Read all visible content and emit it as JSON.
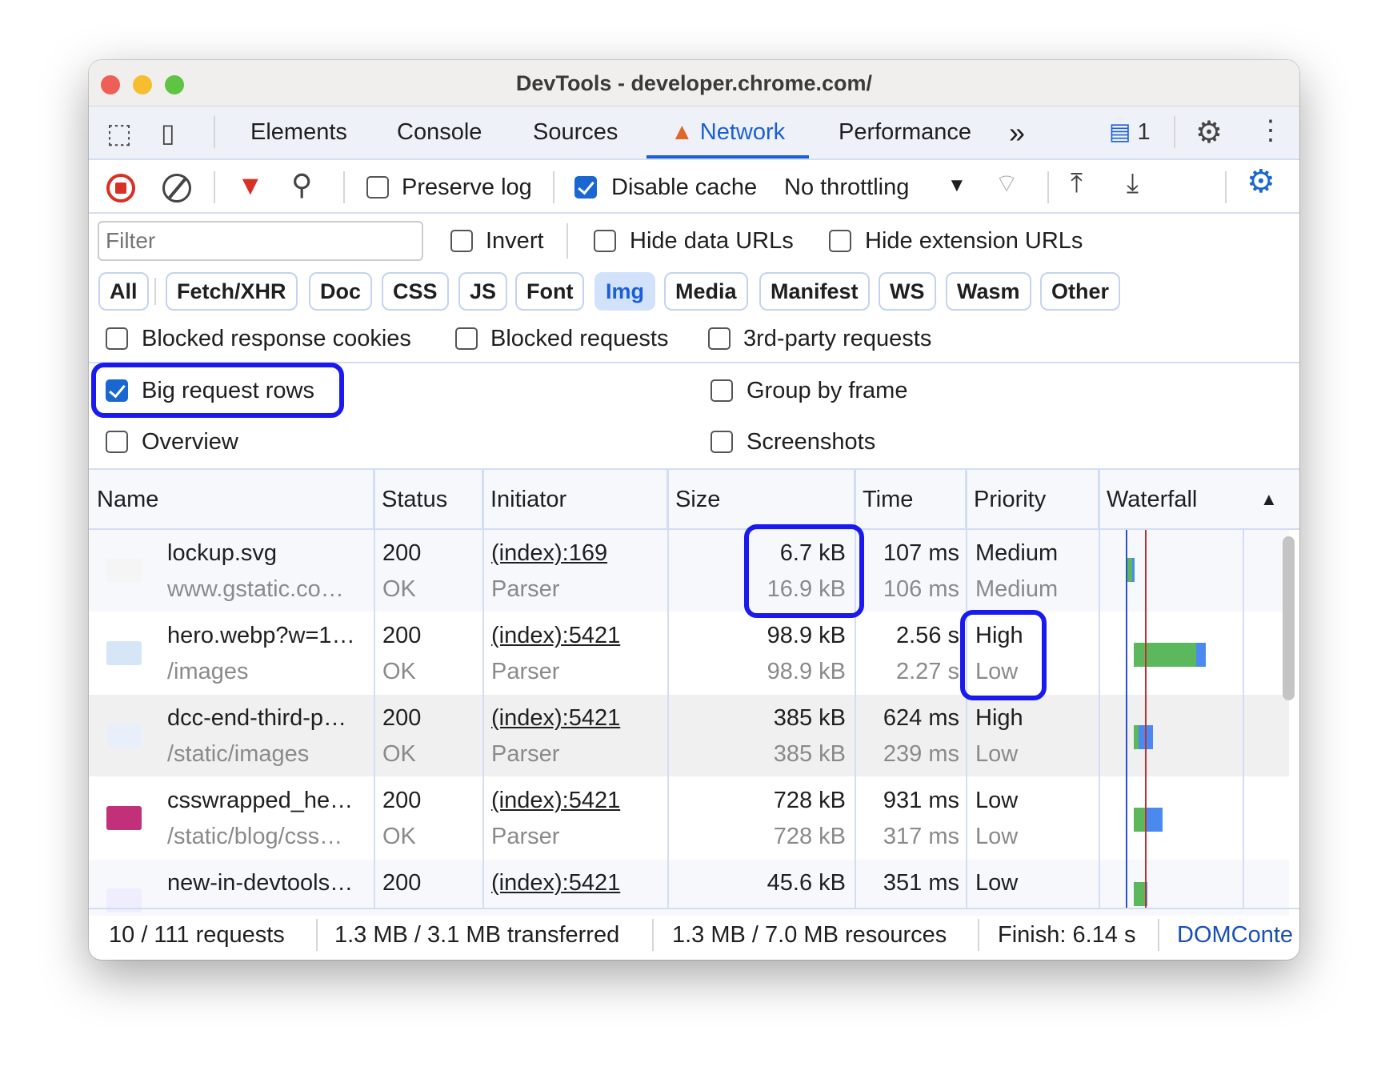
{
  "window": {
    "title": "DevTools - developer.chrome.com/"
  },
  "tabs": [
    {
      "label": "Elements"
    },
    {
      "label": "Console"
    },
    {
      "label": "Sources"
    },
    {
      "label": "Network",
      "active": true,
      "icon": "warning-icon"
    },
    {
      "label": "Performance"
    }
  ],
  "tabbar": {
    "more": "»",
    "issues_count": "1"
  },
  "toolbar": {
    "preserve_log": "Preserve log",
    "preserve_log_checked": false,
    "disable_cache": "Disable cache",
    "disable_cache_checked": true,
    "throttling": "No throttling"
  },
  "filter": {
    "placeholder": "Filter",
    "invert": "Invert",
    "hide_data_urls": "Hide data URLs",
    "hide_extension_urls": "Hide extension URLs"
  },
  "types": [
    "All",
    "Fetch/XHR",
    "Doc",
    "CSS",
    "JS",
    "Font",
    "Img",
    "Media",
    "Manifest",
    "WS",
    "Wasm",
    "Other"
  ],
  "selected_type": "Img",
  "options": {
    "blocked_cookies": "Blocked response cookies",
    "blocked_requests": "Blocked requests",
    "third_party": "3rd-party requests",
    "big_rows": "Big request rows",
    "big_rows_checked": true,
    "group_by_frame": "Group by frame",
    "overview": "Overview",
    "screenshots": "Screenshots"
  },
  "columns": [
    "Name",
    "Status",
    "Initiator",
    "Size",
    "Time",
    "Priority",
    "Waterfall"
  ],
  "rows": [
    {
      "name": "lockup.svg",
      "path": "www.gstatic.co…",
      "status": "200",
      "status_text": "OK",
      "initiator": "(index):169",
      "initiator_type": "Parser",
      "size": "6.7 kB",
      "resource_size": "16.9 kB",
      "time": "107 ms",
      "latency": "106 ms",
      "priority": "Medium",
      "initial_priority": "Medium"
    },
    {
      "name": "hero.webp?w=1…",
      "path": "/images",
      "status": "200",
      "status_text": "OK",
      "initiator": "(index):5421",
      "initiator_type": "Parser",
      "size": "98.9 kB",
      "resource_size": "98.9 kB",
      "time": "2.56 s",
      "latency": "2.27 s",
      "priority": "High",
      "initial_priority": "Low"
    },
    {
      "name": "dcc-end-third-p…",
      "path": "/static/images",
      "status": "200",
      "status_text": "OK",
      "initiator": "(index):5421",
      "initiator_type": "Parser",
      "size": "385 kB",
      "resource_size": "385 kB",
      "time": "624 ms",
      "latency": "239 ms",
      "priority": "High",
      "initial_priority": "Low"
    },
    {
      "name": "csswrapped_he…",
      "path": "/static/blog/css…",
      "status": "200",
      "status_text": "OK",
      "initiator": "(index):5421",
      "initiator_type": "Parser",
      "size": "728 kB",
      "resource_size": "728 kB",
      "time": "931 ms",
      "latency": "317 ms",
      "priority": "Low",
      "initial_priority": "Low"
    },
    {
      "name": "new-in-devtools…",
      "path": "",
      "status": "200",
      "status_text": "",
      "initiator": "(index):5421",
      "initiator_type": "",
      "size": "45.6 kB",
      "resource_size": "",
      "time": "351 ms",
      "latency": "",
      "priority": "Low",
      "initial_priority": ""
    }
  ],
  "footer": {
    "requests": "10 / 111 requests",
    "transferred": "1.3 MB / 3.1 MB transferred",
    "resources": "1.3 MB / 7.0 MB resources",
    "finish": "Finish: 6.14 s",
    "domcontent": "DOMConte"
  },
  "colors": {
    "accent": "#1a5fd6",
    "highlight": "#1a1af0",
    "waterfall_waiting": "#5cb85c",
    "waterfall_download": "#4a8af0",
    "dom_line": "#2a4fd0",
    "load_line": "#c03030"
  }
}
